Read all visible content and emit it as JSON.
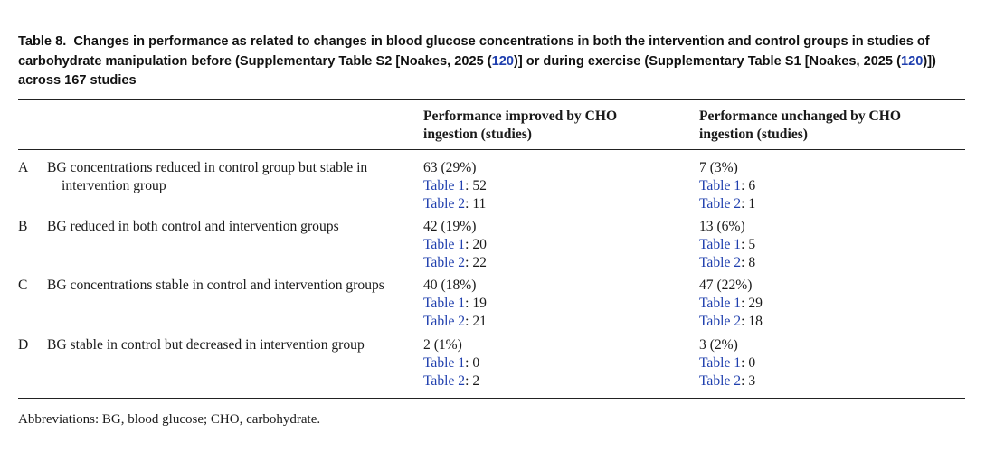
{
  "caption": {
    "label": "Table 8.",
    "text_before": "Changes in performance as related to changes in blood glucose concentrations in both the intervention and control groups in studies of carbohydrate manipulation before (Supplementary Table S2 [Noakes, 2025 (",
    "ref1": "120",
    "text_middle": ")] or during exercise (Supplementary Table S1 [Noakes, 2025 (",
    "ref2": "120",
    "text_after": ")]) across 167 studies"
  },
  "headers": {
    "col1": [
      "Performance improved by CHO",
      "ingestion (studies)"
    ],
    "col2": [
      "Performance unchanged by CHO",
      "ingestion (studies)"
    ]
  },
  "rows": [
    {
      "letter": "A",
      "label_line1": "BG concentrations reduced in control group but stable in",
      "label_line2": "intervention group",
      "improved": {
        "total": "63 (29%)",
        "t1_label": "Table 1",
        "t1_value": ": 52",
        "t2_label": "Table 2",
        "t2_value": ": 11"
      },
      "unchanged": {
        "total": "7 (3%)",
        "t1_label": "Table 1",
        "t1_value": ": 6",
        "t2_label": "Table 2",
        "t2_value": ": 1"
      }
    },
    {
      "letter": "B",
      "label_line1": "BG reduced in both control and intervention groups",
      "label_line2": "",
      "improved": {
        "total": "42 (19%)",
        "t1_label": "Table 1",
        "t1_value": ": 20",
        "t2_label": "Table 2",
        "t2_value": ": 22"
      },
      "unchanged": {
        "total": "13 (6%)",
        "t1_label": "Table 1",
        "t1_value": ": 5",
        "t2_label": "Table 2",
        "t2_value": ": 8"
      }
    },
    {
      "letter": "C",
      "label_line1": "BG concentrations stable in control and intervention groups",
      "label_line2": "",
      "improved": {
        "total": "40 (18%)",
        "t1_label": "Table 1",
        "t1_value": ": 19",
        "t2_label": "Table 2",
        "t2_value": ": 21"
      },
      "unchanged": {
        "total": "47 (22%)",
        "t1_label": "Table 1",
        "t1_value": ": 29",
        "t2_label": "Table 2",
        "t2_value": ": 18"
      }
    },
    {
      "letter": "D",
      "label_line1": "BG stable in control but decreased in intervention group",
      "label_line2": "",
      "improved": {
        "total": "2 (1%)",
        "t1_label": "Table 1",
        "t1_value": ": 0",
        "t2_label": "Table 2",
        "t2_value": ": 2"
      },
      "unchanged": {
        "total": "3 (2%)",
        "t1_label": "Table 1",
        "t1_value": ": 0",
        "t2_label": "Table 2",
        "t2_value": ": 3"
      }
    }
  ],
  "footnote": "Abbreviations: BG, blood glucose; CHO, carbohydrate.",
  "colors": {
    "link": "#1f3fae",
    "text": "#1a1a1a",
    "rule": "#222222"
  }
}
